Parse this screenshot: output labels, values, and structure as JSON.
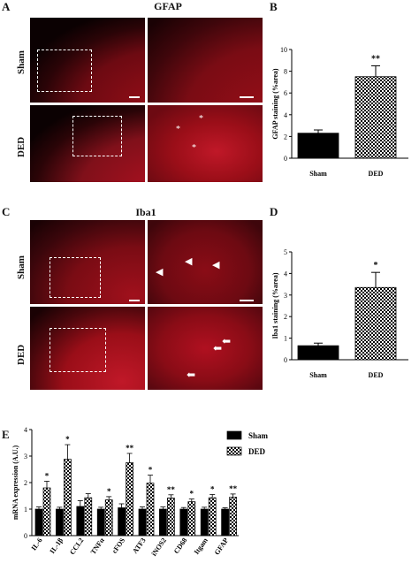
{
  "panelA": {
    "label": "A",
    "title": "GFAP",
    "row_top": "Sham",
    "row_bottom": "DED"
  },
  "panelB": {
    "label": "B"
  },
  "panelC": {
    "label": "C",
    "title": "Iba1",
    "row_top": "Sham",
    "row_bottom": "DED"
  },
  "panelD": {
    "label": "D"
  },
  "panelE": {
    "label": "E"
  },
  "colors": {
    "tissue": "#b01020",
    "tissue_dark": "#200406",
    "bg": "#ffffff",
    "bar_black": "#000000"
  },
  "chart_data": [
    {
      "id": "B",
      "type": "bar",
      "categories": [
        "Sham",
        "DED"
      ],
      "values": [
        2.3,
        7.5
      ],
      "errors": [
        0.3,
        1.0
      ],
      "patterns": [
        "solid",
        "checker"
      ],
      "significance": [
        "",
        "**"
      ],
      "ylabel": "GFAP staining (%area)",
      "ylim": [
        0,
        10
      ],
      "yticks": [
        0,
        2,
        4,
        6,
        8,
        10
      ]
    },
    {
      "id": "D",
      "type": "bar",
      "categories": [
        "Sham",
        "DED"
      ],
      "values": [
        0.65,
        3.35
      ],
      "errors": [
        0.12,
        0.7
      ],
      "patterns": [
        "solid",
        "checker"
      ],
      "significance": [
        "",
        "*"
      ],
      "ylabel": "Iba1 staining (%area)",
      "ylim": [
        0,
        5
      ],
      "yticks": [
        0,
        1,
        2,
        3,
        4,
        5
      ]
    },
    {
      "id": "E",
      "type": "bar",
      "categories": [
        "IL-6",
        "IL-1β",
        "CCL2",
        "TNFα",
        "cFOS",
        "ATF3",
        "iNOS2",
        "CD68",
        "Itgam",
        "GFAP"
      ],
      "series": [
        {
          "name": "Sham",
          "values": [
            1.0,
            1.0,
            1.1,
            1.0,
            1.05,
            1.0,
            1.0,
            1.0,
            1.0,
            1.0
          ],
          "errors": [
            0.08,
            0.07,
            0.22,
            0.07,
            0.15,
            0.08,
            0.08,
            0.06,
            0.07,
            0.05
          ],
          "pattern": "solid"
        },
        {
          "name": "DED",
          "values": [
            1.8,
            2.88,
            1.43,
            1.35,
            2.75,
            1.98,
            1.42,
            1.28,
            1.43,
            1.45
          ],
          "errors": [
            0.25,
            0.55,
            0.15,
            0.12,
            0.35,
            0.3,
            0.12,
            0.1,
            0.12,
            0.12
          ],
          "pattern": "checker"
        }
      ],
      "significance": [
        "*",
        "*",
        "",
        "*",
        "**",
        "*",
        "**",
        "*",
        "*",
        "**"
      ],
      "ylabel": "mRNA expression (A.U.)",
      "ylim": [
        0,
        4
      ],
      "yticks": [
        0,
        1,
        2,
        3,
        4
      ],
      "legend": "top-right"
    }
  ]
}
